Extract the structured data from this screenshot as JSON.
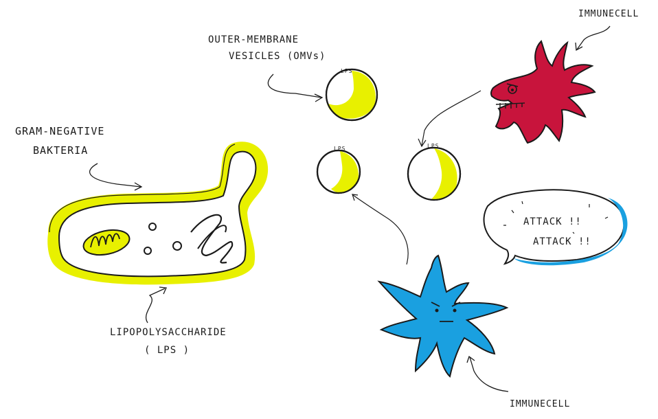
{
  "labels": {
    "bacteria_line1": "GRAM-NEGATIVE",
    "bacteria_line2": "BAKTERIA",
    "lps_line1": "LIPOPOLYSACCHARIDE",
    "lps_line2": "( LPS )",
    "omv_line1": "OUTER-MEMBRANE",
    "omv_line2": "VESICLES (OMVs)",
    "immune_top": "IMMUNECELL",
    "immune_bottom": "IMMUNECELL",
    "vesicle_lps": "LPS"
  },
  "speech": {
    "line1": "ATTACK !!",
    "line2": "ATTACK !!"
  },
  "colors": {
    "lps_yellow": "#e8f000",
    "immune_red": "#c8143c",
    "immune_blue": "#1aa0e0",
    "ink": "#1a1a1a"
  }
}
